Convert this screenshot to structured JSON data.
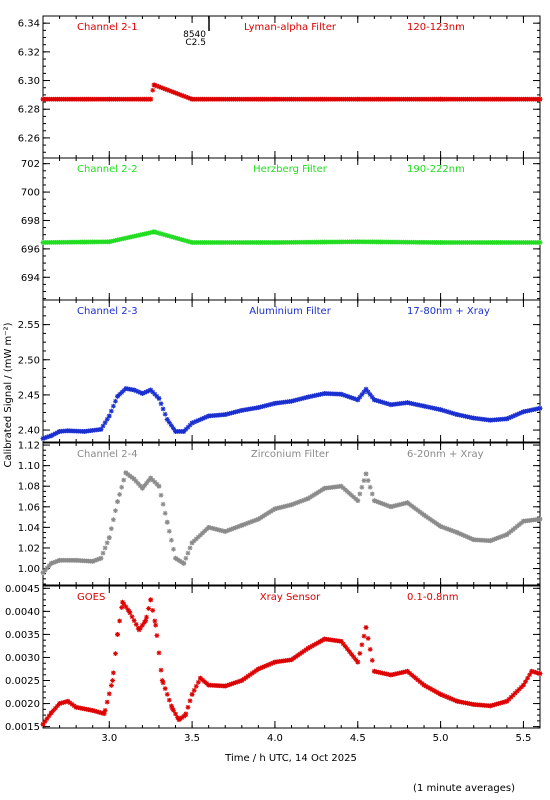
{
  "figure": {
    "ylabel": "Calibrated Signal / (mW m⁻²)",
    "xlabel": "Time / h UTC, 14 Oct 2025",
    "footnote": "(1 minute averages)",
    "marker": {
      "text_top": "8540",
      "text_bottom": "C2.5",
      "x": 3.6
    }
  },
  "chart_data": [
    {
      "type": "scatter",
      "channel": "Channel 2-1",
      "filter": "Lyman-alpha Filter",
      "band": "120-123nm",
      "color": "#dd0000",
      "xlim": [
        2.6,
        5.6
      ],
      "ylim": [
        6.246,
        6.345
      ],
      "yticks": [
        6.26,
        6.28,
        6.3,
        6.32,
        6.34
      ],
      "ytick_labels": [
        "6.26",
        "6.28",
        "6.30",
        "6.32",
        "6.34"
      ],
      "xticks": [
        3.0,
        3.5,
        4.0,
        4.5,
        5.0,
        5.5
      ],
      "xtick_labels": [],
      "baseline": 6.287,
      "points": [
        [
          2.6,
          6.287
        ],
        [
          3.0,
          6.287
        ],
        [
          3.25,
          6.287
        ],
        [
          3.27,
          6.297
        ],
        [
          3.5,
          6.287
        ],
        [
          4.0,
          6.287
        ],
        [
          4.5,
          6.287
        ],
        [
          5.0,
          6.287
        ],
        [
          5.6,
          6.287
        ]
      ]
    },
    {
      "type": "scatter",
      "channel": "Channel 2-2",
      "filter": "Herzberg Filter",
      "band": "190-222nm",
      "color": "#22dd22",
      "xlim": [
        2.6,
        5.6
      ],
      "ylim": [
        692.4,
        702.4
      ],
      "yticks": [
        694,
        696,
        698,
        700,
        702
      ],
      "ytick_labels": [
        "694",
        "696",
        "698",
        "700",
        "702"
      ],
      "xticks": [
        3.0,
        3.5,
        4.0,
        4.5,
        5.0,
        5.5
      ],
      "xtick_labels": [],
      "baseline": 696.45,
      "points": [
        [
          2.6,
          696.45
        ],
        [
          3.0,
          696.5
        ],
        [
          3.27,
          697.2
        ],
        [
          3.5,
          696.45
        ],
        [
          4.0,
          696.45
        ],
        [
          4.5,
          696.5
        ],
        [
          5.0,
          696.45
        ],
        [
          5.6,
          696.45
        ]
      ]
    },
    {
      "type": "scatter",
      "channel": "Channel 2-3",
      "filter": "Aluminium Filter",
      "band": "17-80nm + Xray",
      "color": "#1a2fd0",
      "xlim": [
        2.6,
        5.6
      ],
      "ylim": [
        2.383,
        2.585
      ],
      "yticks": [
        2.4,
        2.45,
        2.5,
        2.55
      ],
      "ytick_labels": [
        "2.40",
        "2.45",
        "2.50",
        "2.55"
      ],
      "xticks": [
        3.0,
        3.5,
        4.0,
        4.5,
        5.0,
        5.5
      ],
      "xtick_labels": [],
      "points": [
        [
          2.6,
          2.388
        ],
        [
          2.65,
          2.392
        ],
        [
          2.7,
          2.398
        ],
        [
          2.75,
          2.399
        ],
        [
          2.85,
          2.398
        ],
        [
          2.95,
          2.401
        ],
        [
          3.0,
          2.42
        ],
        [
          3.05,
          2.448
        ],
        [
          3.1,
          2.459
        ],
        [
          3.15,
          2.457
        ],
        [
          3.2,
          2.452
        ],
        [
          3.25,
          2.457
        ],
        [
          3.3,
          2.445
        ],
        [
          3.35,
          2.415
        ],
        [
          3.4,
          2.398
        ],
        [
          3.45,
          2.398
        ],
        [
          3.5,
          2.41
        ],
        [
          3.6,
          2.42
        ],
        [
          3.7,
          2.422
        ],
        [
          3.8,
          2.428
        ],
        [
          3.9,
          2.432
        ],
        [
          4.0,
          2.438
        ],
        [
          4.1,
          2.441
        ],
        [
          4.2,
          2.447
        ],
        [
          4.3,
          2.452
        ],
        [
          4.4,
          2.451
        ],
        [
          4.5,
          2.443
        ],
        [
          4.55,
          2.458
        ],
        [
          4.6,
          2.443
        ],
        [
          4.7,
          2.436
        ],
        [
          4.8,
          2.439
        ],
        [
          4.9,
          2.434
        ],
        [
          5.0,
          2.429
        ],
        [
          5.1,
          2.422
        ],
        [
          5.2,
          2.417
        ],
        [
          5.3,
          2.414
        ],
        [
          5.4,
          2.416
        ],
        [
          5.5,
          2.426
        ],
        [
          5.6,
          2.431
        ]
      ]
    },
    {
      "type": "scatter",
      "channel": "Channel 2-4",
      "filter": "Zirconium Filter",
      "band": "6-20nm + Xray",
      "color": "#8a8a8a",
      "xlim": [
        2.6,
        5.6
      ],
      "ylim": [
        0.984,
        1.122
      ],
      "yticks": [
        1.0,
        1.02,
        1.04,
        1.06,
        1.08,
        1.1,
        1.12
      ],
      "ytick_labels": [
        "1.00",
        "1.02",
        "1.04",
        "1.06",
        "1.08",
        "1.10",
        "1.12"
      ],
      "xticks": [
        3.0,
        3.5,
        4.0,
        4.5,
        5.0,
        5.5
      ],
      "xtick_labels": [],
      "points": [
        [
          2.6,
          0.996
        ],
        [
          2.65,
          1.005
        ],
        [
          2.7,
          1.008
        ],
        [
          2.8,
          1.008
        ],
        [
          2.9,
          1.007
        ],
        [
          2.95,
          1.01
        ],
        [
          3.0,
          1.03
        ],
        [
          3.05,
          1.065
        ],
        [
          3.1,
          1.093
        ],
        [
          3.15,
          1.087
        ],
        [
          3.2,
          1.078
        ],
        [
          3.25,
          1.088
        ],
        [
          3.3,
          1.08
        ],
        [
          3.35,
          1.045
        ],
        [
          3.4,
          1.01
        ],
        [
          3.45,
          1.005
        ],
        [
          3.5,
          1.025
        ],
        [
          3.6,
          1.04
        ],
        [
          3.7,
          1.036
        ],
        [
          3.8,
          1.042
        ],
        [
          3.9,
          1.048
        ],
        [
          4.0,
          1.058
        ],
        [
          4.1,
          1.062
        ],
        [
          4.2,
          1.068
        ],
        [
          4.3,
          1.078
        ],
        [
          4.4,
          1.08
        ],
        [
          4.5,
          1.066
        ],
        [
          4.55,
          1.092
        ],
        [
          4.6,
          1.066
        ],
        [
          4.7,
          1.06
        ],
        [
          4.8,
          1.064
        ],
        [
          4.9,
          1.052
        ],
        [
          5.0,
          1.041
        ],
        [
          5.1,
          1.035
        ],
        [
          5.2,
          1.028
        ],
        [
          5.3,
          1.027
        ],
        [
          5.4,
          1.033
        ],
        [
          5.5,
          1.046
        ],
        [
          5.6,
          1.048
        ]
      ]
    },
    {
      "type": "scatter",
      "channel": "GOES",
      "filter": "Xray Sensor",
      "band": "0.1-0.8nm",
      "color": "#dd0000",
      "xlim": [
        2.6,
        5.6
      ],
      "ylim": [
        0.00147,
        0.00455
      ],
      "yticks": [
        0.0015,
        0.002,
        0.0025,
        0.003,
        0.0035,
        0.004,
        0.0045
      ],
      "ytick_labels": [
        "0.0015",
        "0.0020",
        "0.0025",
        "0.0030",
        "0.0035",
        "0.0040",
        "0.0045"
      ],
      "xticks": [
        3.0,
        3.5,
        4.0,
        4.5,
        5.0,
        5.5
      ],
      "xtick_labels": [
        "3.0",
        "3.5",
        "4.0",
        "4.5",
        "5.0",
        "5.5"
      ],
      "points": [
        [
          2.6,
          0.00155
        ],
        [
          2.65,
          0.0018
        ],
        [
          2.7,
          0.002
        ],
        [
          2.75,
          0.00205
        ],
        [
          2.8,
          0.00192
        ],
        [
          2.9,
          0.00185
        ],
        [
          2.97,
          0.00178
        ],
        [
          3.02,
          0.0025
        ],
        [
          3.05,
          0.0035
        ],
        [
          3.08,
          0.0042
        ],
        [
          3.12,
          0.004
        ],
        [
          3.18,
          0.0036
        ],
        [
          3.22,
          0.0038
        ],
        [
          3.25,
          0.00425
        ],
        [
          3.28,
          0.0037
        ],
        [
          3.32,
          0.0025
        ],
        [
          3.38,
          0.0019
        ],
        [
          3.42,
          0.00165
        ],
        [
          3.46,
          0.00175
        ],
        [
          3.5,
          0.0022
        ],
        [
          3.55,
          0.00255
        ],
        [
          3.6,
          0.0024
        ],
        [
          3.7,
          0.00238
        ],
        [
          3.8,
          0.0025
        ],
        [
          3.9,
          0.00275
        ],
        [
          4.0,
          0.0029
        ],
        [
          4.1,
          0.00295
        ],
        [
          4.2,
          0.0032
        ],
        [
          4.3,
          0.0034
        ],
        [
          4.4,
          0.00335
        ],
        [
          4.5,
          0.0029
        ],
        [
          4.55,
          0.00365
        ],
        [
          4.6,
          0.0027
        ],
        [
          4.7,
          0.00262
        ],
        [
          4.8,
          0.0027
        ],
        [
          4.9,
          0.0024
        ],
        [
          5.0,
          0.0022
        ],
        [
          5.1,
          0.00205
        ],
        [
          5.2,
          0.00198
        ],
        [
          5.3,
          0.00195
        ],
        [
          5.4,
          0.00205
        ],
        [
          5.5,
          0.0024
        ],
        [
          5.55,
          0.0027
        ],
        [
          5.6,
          0.00265
        ]
      ]
    }
  ]
}
